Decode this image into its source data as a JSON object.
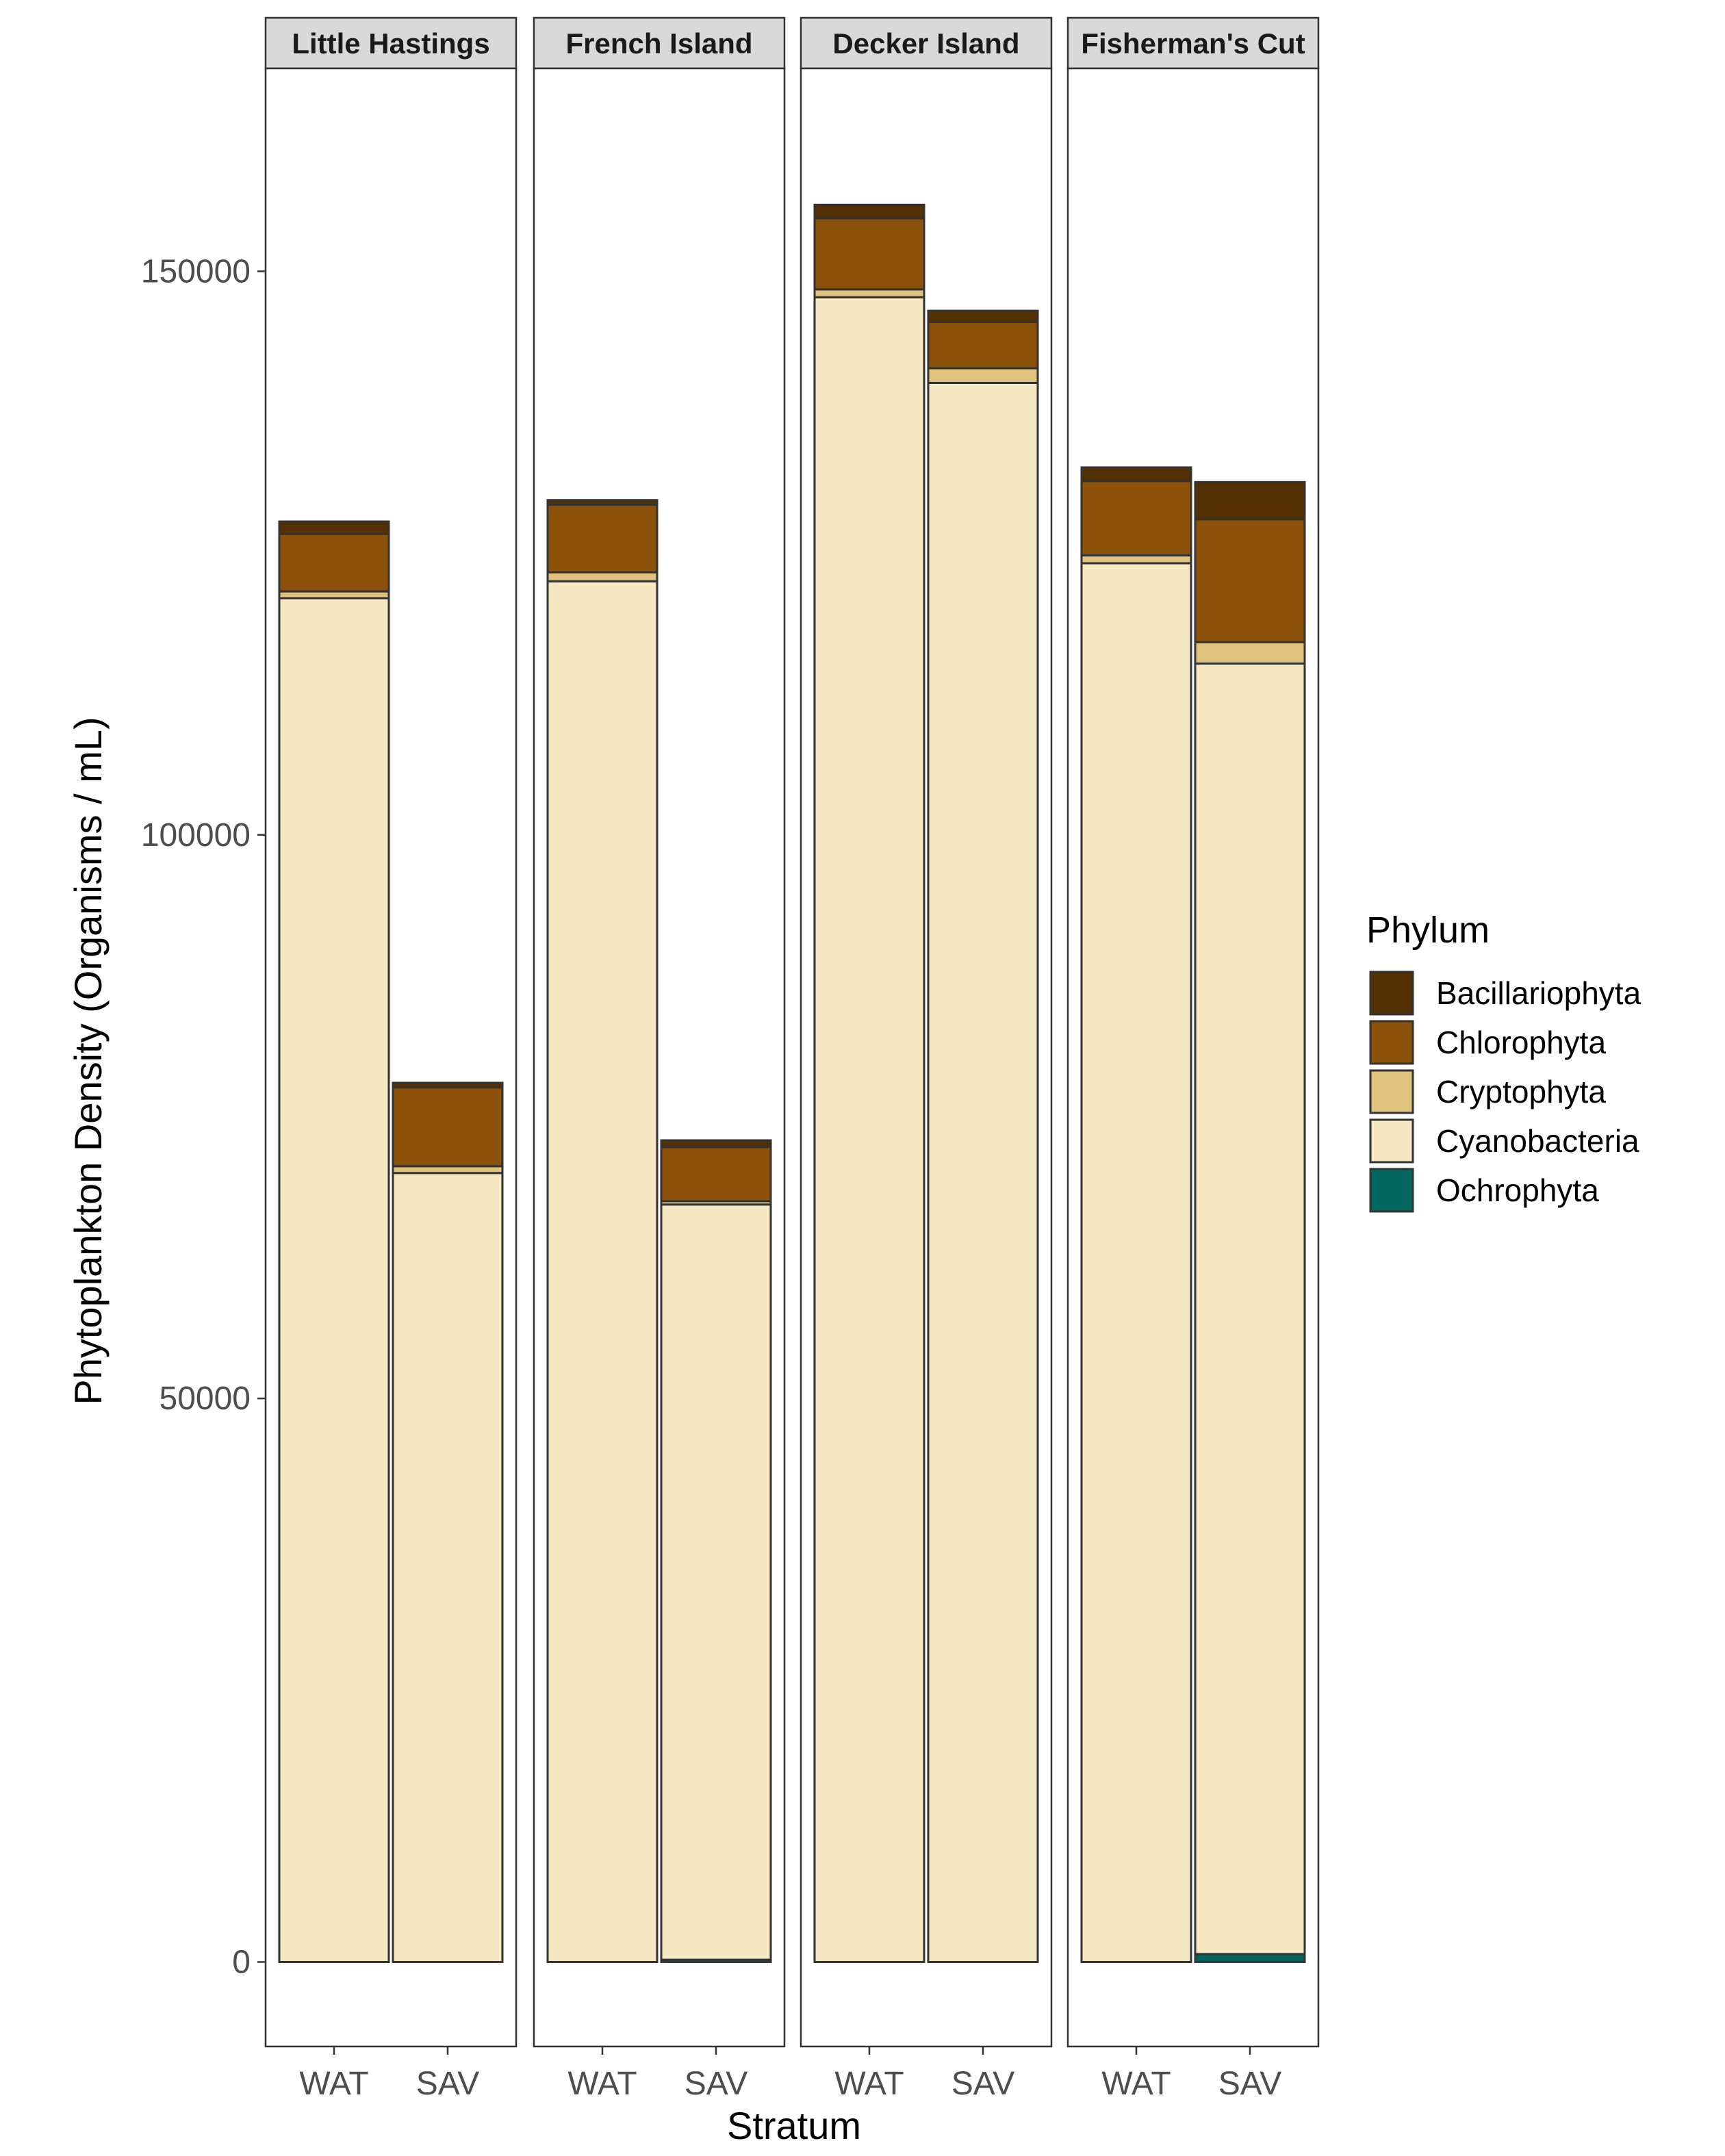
{
  "chart_data": {
    "type": "bar",
    "stacked": true,
    "facets": [
      "Little Hastings",
      "French Island",
      "Decker Island",
      "Fisherman's Cut"
    ],
    "categories": [
      "WAT",
      "SAV"
    ],
    "xlabel": "Stratum",
    "ylabel": "Phytoplankton Density (Organisms / mL)",
    "ylim": [
      -7500,
      168000
    ],
    "yticks": [
      0,
      50000,
      100000,
      150000
    ],
    "ytick_labels": [
      "0",
      "50000",
      "100000",
      "150000"
    ],
    "grid": false,
    "legend": {
      "title": "Phylum",
      "position": "right",
      "entries": [
        "Bacillariophyta",
        "Chlorophyta",
        "Cryptophyta",
        "Cyanobacteria",
        "Ochrophyta"
      ]
    },
    "colors": {
      "Bacillariophyta": "#543005",
      "Chlorophyta": "#8c510a",
      "Cryptophyta": "#dfc27d",
      "Cyanobacteria": "#f6e8c3",
      "Ochrophyta": "#01665e"
    },
    "stack_order": [
      "Ochrophyta",
      "Cyanobacteria",
      "Cryptophyta",
      "Chlorophyta",
      "Bacillariophyta"
    ],
    "series": [
      {
        "name": "Bacillariophyta",
        "values": [
          [
            1100,
            400
          ],
          [
            400,
            600
          ],
          [
            1200,
            1000
          ],
          [
            1200,
            3300
          ]
        ]
      },
      {
        "name": "Chlorophyta",
        "values": [
          [
            5100,
            7000
          ],
          [
            6000,
            4800
          ],
          [
            6300,
            4100
          ],
          [
            6600,
            10900
          ]
        ]
      },
      {
        "name": "Cryptophyta",
        "values": [
          [
            600,
            600
          ],
          [
            800,
            300
          ],
          [
            700,
            1300
          ],
          [
            700,
            1900
          ]
        ]
      },
      {
        "name": "Cyanobacteria",
        "values": [
          [
            121000,
            70000
          ],
          [
            122500,
            67000
          ],
          [
            147700,
            140100
          ],
          [
            124100,
            114500
          ]
        ]
      },
      {
        "name": "Ochrophyta",
        "values": [
          [
            0,
            0
          ],
          [
            0,
            200
          ],
          [
            0,
            0
          ],
          [
            0,
            700
          ]
        ]
      }
    ]
  }
}
